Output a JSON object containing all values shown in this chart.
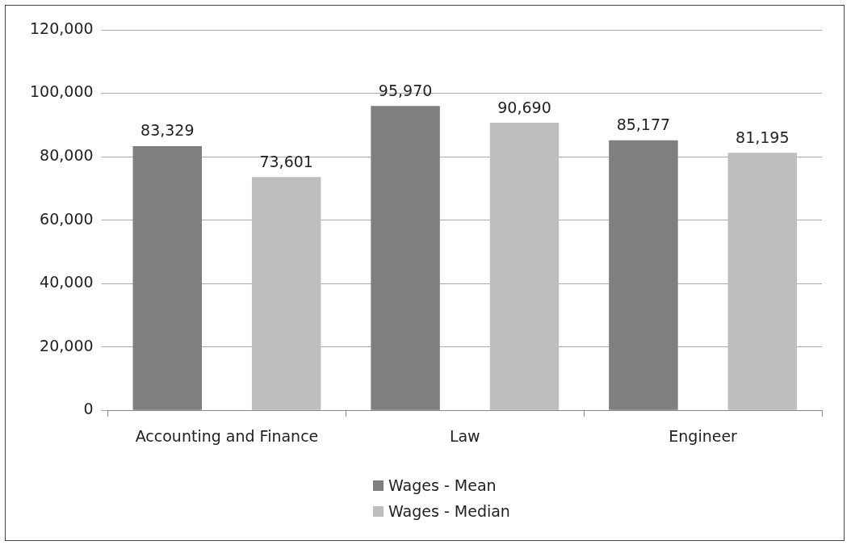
{
  "chart_data": {
    "type": "bar",
    "categories": [
      "Accounting and Finance",
      "Law",
      "Engineer"
    ],
    "series": [
      {
        "name": "Wages - Mean",
        "color": "#7f7f82",
        "values": [
          83329,
          95970,
          85177
        ],
        "value_labels": [
          "83,329",
          "95,970",
          "85,177"
        ]
      },
      {
        "name": "Wages - Median",
        "color": "#bebec1",
        "values": [
          73601,
          90690,
          81195
        ],
        "value_labels": [
          "73,601",
          "90,690",
          "81,195"
        ]
      }
    ],
    "ylim": [
      0,
      120000
    ],
    "yticks": [
      {
        "value": 0,
        "label": "0"
      },
      {
        "value": 20000,
        "label": "20,000"
      },
      {
        "value": 40000,
        "label": "40,000"
      },
      {
        "value": 60000,
        "label": "60,000"
      },
      {
        "value": 80000,
        "label": "80,000"
      },
      {
        "value": 100000,
        "label": "100,000"
      },
      {
        "value": 120000,
        "label": "120,000"
      }
    ],
    "grid": "y",
    "legend": "bottom"
  }
}
